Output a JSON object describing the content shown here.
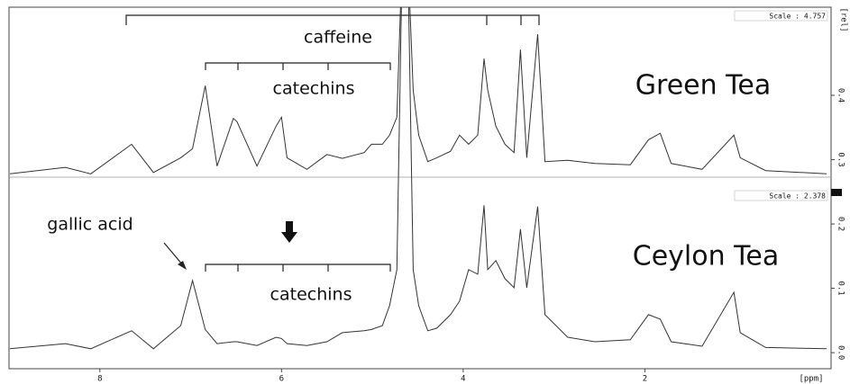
{
  "chart_data": {
    "type": "line",
    "xlabel": "[ppm]",
    "ylabel": "[rel]",
    "x": [
      8.99,
      8.38,
      8.1,
      7.65,
      7.41,
      7.11,
      6.98,
      6.84,
      6.71,
      6.53,
      6.49,
      6.27,
      6.06,
      6.0,
      5.94,
      5.72,
      5.5,
      5.33,
      5.09,
      5.01,
      4.89,
      4.81,
      4.73,
      4.67,
      4.61,
      4.55,
      4.49,
      4.39,
      4.29,
      4.14,
      4.04,
      3.94,
      3.84,
      3.77,
      3.73,
      3.64,
      3.54,
      3.44,
      3.37,
      3.3,
      3.18,
      3.1,
      2.85,
      2.55,
      2.16,
      1.96,
      1.83,
      1.71,
      1.37,
      1.02,
      0.95,
      0.67,
      0.0
    ],
    "series": [
      {
        "name": "Green Tea",
        "color": "#333333",
        "values": [
          0.278,
          0.288,
          0.278,
          0.324,
          0.28,
          0.303,
          0.317,
          0.415,
          0.29,
          0.364,
          0.359,
          0.29,
          0.352,
          0.366,
          0.303,
          0.285,
          0.308,
          0.302,
          0.311,
          0.324,
          0.324,
          0.338,
          0.366,
          0.62,
          0.62,
          0.408,
          0.338,
          0.297,
          0.303,
          0.313,
          0.338,
          0.324,
          0.338,
          0.457,
          0.408,
          0.352,
          0.324,
          0.311,
          0.471,
          0.303,
          0.495,
          0.297,
          0.299,
          0.294,
          0.292,
          0.331,
          0.341,
          0.294,
          0.285,
          0.338,
          0.303,
          0.283,
          0.278
        ]
      },
      {
        "name": "Ceylon Tea",
        "color": "#333333",
        "values": [
          0.006,
          0.014,
          0.006,
          0.034,
          0.006,
          0.042,
          0.112,
          0.036,
          0.014,
          0.017,
          0.017,
          0.011,
          0.024,
          0.022,
          0.014,
          0.011,
          0.017,
          0.031,
          0.034,
          0.036,
          0.042,
          0.073,
          0.129,
          0.62,
          0.62,
          0.129,
          0.073,
          0.034,
          0.038,
          0.059,
          0.08,
          0.129,
          0.122,
          0.229,
          0.129,
          0.143,
          0.115,
          0.101,
          0.192,
          0.101,
          0.227,
          0.059,
          0.024,
          0.017,
          0.02,
          0.059,
          0.052,
          0.017,
          0.01,
          0.094,
          0.031,
          0.008,
          0.006
        ]
      }
    ],
    "annotations": [
      "caffeine",
      "catechins",
      "catechins",
      "gallic acid"
    ],
    "scale_labels": [
      "Scale : 4.757",
      "Scale : 2.378"
    ],
    "xlim": [
      9,
      -0.05
    ],
    "xticks": [
      8,
      6,
      4,
      2
    ],
    "ylim": [
      -0.025,
      0.537
    ],
    "yticks": [
      {
        "value": 0,
        "label": "0.0"
      },
      0.1,
      0.2,
      0.3,
      0.4
    ]
  }
}
